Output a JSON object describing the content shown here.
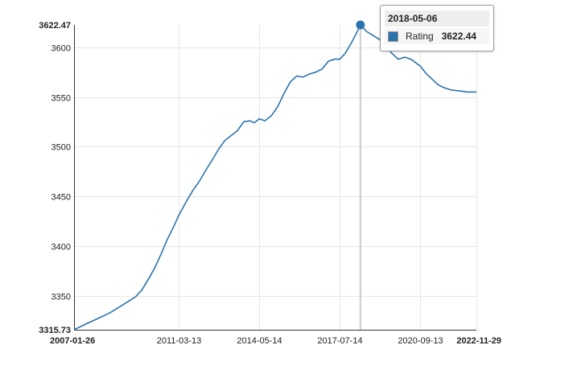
{
  "chart_data": {
    "type": "line",
    "title": "",
    "xlabel": "",
    "ylabel": "",
    "x_ticks": [
      "2011-03-13",
      "2014-05-14",
      "2017-07-14",
      "2020-09-13"
    ],
    "x_range": [
      "2007-01-26",
      "2022-11-29"
    ],
    "y_ticks": [
      3350,
      3400,
      3450,
      3500,
      3550,
      3600
    ],
    "y_range": [
      3315.73,
      3622.47
    ],
    "y_range_labels": [
      "3315.73",
      "3622.47"
    ],
    "grid": true,
    "legend": "none",
    "series": [
      {
        "name": "Rating",
        "color": "#2b73ad",
        "points": [
          [
            "2007-01-26",
            3315.7
          ],
          [
            "2007-07-01",
            3321
          ],
          [
            "2008-01-01",
            3327
          ],
          [
            "2008-07-01",
            3333
          ],
          [
            "2009-01-01",
            3341
          ],
          [
            "2009-07-01",
            3349
          ],
          [
            "2009-10-01",
            3356
          ],
          [
            "2010-01-01",
            3367
          ],
          [
            "2010-04-01",
            3378
          ],
          [
            "2010-07-01",
            3392
          ],
          [
            "2010-10-01",
            3407
          ],
          [
            "2011-01-01",
            3420
          ],
          [
            "2011-03-13",
            3431
          ],
          [
            "2011-07-01",
            3445
          ],
          [
            "2011-10-01",
            3456
          ],
          [
            "2012-01-01",
            3465
          ],
          [
            "2012-04-01",
            3476
          ],
          [
            "2012-07-01",
            3486
          ],
          [
            "2012-10-01",
            3497
          ],
          [
            "2013-01-01",
            3506
          ],
          [
            "2013-04-01",
            3511
          ],
          [
            "2013-07-01",
            3516
          ],
          [
            "2013-10-01",
            3525
          ],
          [
            "2014-01-01",
            3526
          ],
          [
            "2014-03-01",
            3524
          ],
          [
            "2014-05-14",
            3528
          ],
          [
            "2014-08-01",
            3526
          ],
          [
            "2014-11-01",
            3531
          ],
          [
            "2015-02-01",
            3540
          ],
          [
            "2015-05-01",
            3553
          ],
          [
            "2015-08-01",
            3565
          ],
          [
            "2015-11-01",
            3571
          ],
          [
            "2016-02-01",
            3570
          ],
          [
            "2016-05-01",
            3573
          ],
          [
            "2016-08-01",
            3575
          ],
          [
            "2016-11-01",
            3578
          ],
          [
            "2017-02-01",
            3586
          ],
          [
            "2017-05-01",
            3588
          ],
          [
            "2017-07-14",
            3588
          ],
          [
            "2017-10-01",
            3594
          ],
          [
            "2018-01-01",
            3605
          ],
          [
            "2018-03-15",
            3615
          ],
          [
            "2018-05-06",
            3622.44
          ],
          [
            "2018-08-01",
            3616
          ],
          [
            "2018-11-01",
            3612
          ],
          [
            "2019-02-01",
            3608
          ],
          [
            "2019-05-01",
            3601
          ],
          [
            "2019-08-01",
            3594
          ],
          [
            "2019-11-01",
            3588
          ],
          [
            "2020-02-01",
            3590
          ],
          [
            "2020-05-01",
            3588
          ],
          [
            "2020-09-13",
            3581
          ],
          [
            "2020-12-01",
            3574
          ],
          [
            "2021-03-01",
            3568
          ],
          [
            "2021-06-01",
            3562
          ],
          [
            "2021-09-01",
            3559
          ],
          [
            "2021-12-01",
            3557
          ],
          [
            "2022-04-01",
            3556
          ],
          [
            "2022-08-01",
            3555
          ],
          [
            "2022-11-29",
            3555
          ]
        ]
      }
    ],
    "highlight": {
      "date": "2018-05-06",
      "series": "Rating",
      "value": 3622.44
    }
  },
  "tooltip": {
    "date": "2018-05-06",
    "label": "Rating",
    "value": "3622.44",
    "swatch_color": "#2b73ad"
  }
}
